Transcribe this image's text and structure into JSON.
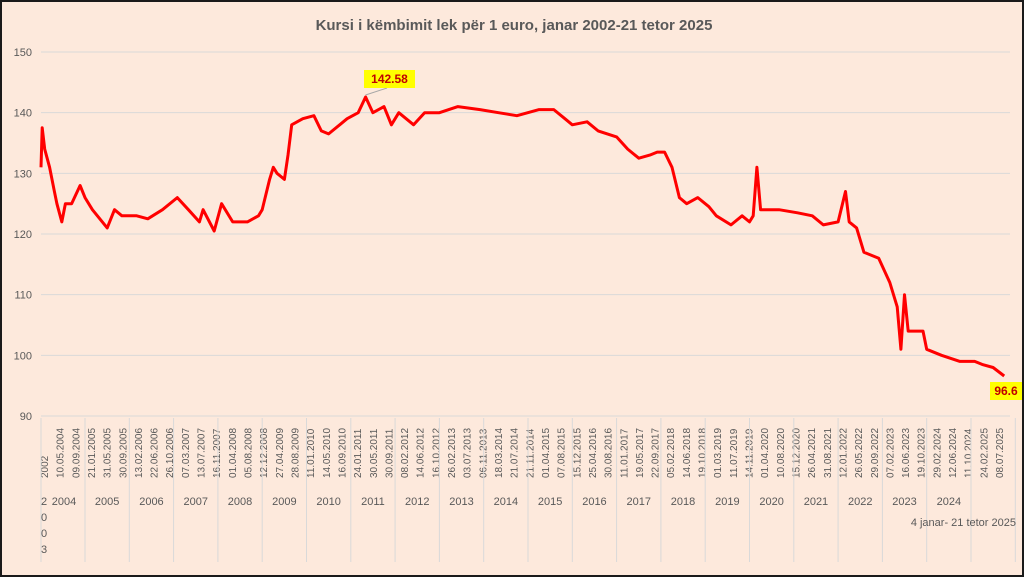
{
  "chart_data": {
    "type": "line",
    "title": "Kursi i këmbimit lek për 1 euro, janar 2002-21 tetor 2025",
    "xlabel": "",
    "ylabel": "",
    "ylim": [
      90,
      150
    ],
    "yticks": [
      90,
      100,
      110,
      120,
      130,
      140,
      150
    ],
    "grid": true,
    "line_color": "#ff0000",
    "x_tick_labels": [
      "2002",
      "10.05.2004",
      "09.09.2004",
      "21.01.2005",
      "31.05.2005",
      "30.09.2005",
      "13.02.2006",
      "22.06.2006",
      "26.10.2006",
      "07.03.2007",
      "13.07.2007",
      "16.11.2007",
      "01.04.2008",
      "05.08.2008",
      "12.12.2008",
      "27.04.2009",
      "28.08.2009",
      "11.01.2010",
      "14.05.2010",
      "16.09.2010",
      "24.01.2011",
      "30.05.2011",
      "30.09.2011",
      "08.02.2012",
      "14.06.2012",
      "16.10.2012",
      "26.02.2013",
      "03.07.2013",
      "06.11.2013",
      "18.03.2014",
      "21.07.2014",
      "21.11.2014",
      "01.04.2015",
      "07.08.2015",
      "15.12.2015",
      "25.04.2016",
      "30.08.2016",
      "11.01.2017",
      "19.05.2017",
      "22.09.2017",
      "05.02.2018",
      "14.06.2018",
      "19.10.2018",
      "01.03.2019",
      "11.07.2019",
      "14.11.2019",
      "01.04.2020",
      "10.08.2020",
      "15.12.2020",
      "26.04.2021",
      "31.08.2021",
      "12.01.2022",
      "26.05.2022",
      "29.09.2022",
      "07.02.2023",
      "16.06.2023",
      "19.10.2023",
      "29.02.2024",
      "12.06.2024",
      "11.10.2024",
      "24.02.2025",
      "08.07.2025"
    ],
    "year_labels": [
      "2004",
      "2005",
      "2006",
      "2007",
      "2008",
      "2009",
      "2010",
      "2011",
      "2012",
      "2013",
      "2014",
      "2015",
      "2016",
      "2017",
      "2018",
      "2019",
      "2020",
      "2021",
      "2022",
      "2023",
      "2024"
    ],
    "first_year_label": "2003",
    "last_period_label": "4 janar- 21 tetor 2025",
    "annotations": [
      {
        "label": "142.58",
        "x": "2011-05",
        "y": 142.58,
        "bg": "#ffff00",
        "color": "#c00000"
      },
      {
        "label": "96.6",
        "x": "2025-10",
        "y": 96.6,
        "bg": "#ffff00",
        "color": "#c00000"
      }
    ],
    "series": [
      {
        "x": [
          "2002-01",
          "2002-02",
          "2002-04",
          "2002-08",
          "2002-12",
          "2003-02",
          "2003-06",
          "2003-09",
          "2004-02",
          "2004-09",
          "2005-01",
          "2005-03",
          "2005-07",
          "2005-09",
          "2005-11",
          "2006-03",
          "2006-06",
          "2006-10",
          "2007-02",
          "2007-05",
          "2007-08",
          "2007-09",
          "2007-12",
          "2008-02",
          "2008-05",
          "2008-09",
          "2008-12",
          "2009-01",
          "2009-03",
          "2009-04",
          "2009-05",
          "2009-07",
          "2009-08",
          "2009-09",
          "2009-12",
          "2010-03",
          "2010-05",
          "2010-07",
          "2010-10",
          "2010-12",
          "2011-03",
          "2011-05",
          "2011-07",
          "2011-10",
          "2011-12",
          "2012-02",
          "2012-06",
          "2012-09",
          "2013-01",
          "2013-06",
          "2013-12",
          "2014-05",
          "2014-10",
          "2015-04",
          "2015-08",
          "2015-11",
          "2016-01",
          "2016-05",
          "2016-08",
          "2017-01",
          "2017-04",
          "2017-07",
          "2017-10",
          "2017-12",
          "2018-02",
          "2018-04",
          "2018-06",
          "2018-08",
          "2018-11",
          "2019-02",
          "2019-04",
          "2019-08",
          "2019-11",
          "2020-01",
          "2020-02",
          "2020-03",
          "2020-04",
          "2020-09",
          "2021-02",
          "2021-06",
          "2021-09",
          "2022-01",
          "2022-03",
          "2022-04",
          "2022-06",
          "2022-08",
          "2022-12",
          "2023-03",
          "2023-05",
          "2023-06",
          "2023-07",
          "2023-08",
          "2023-09",
          "2023-12",
          "2024-01",
          "2024-05",
          "2024-10",
          "2025-02",
          "2025-04",
          "2025-07",
          "2025-10"
        ],
        "values": [
          131,
          137.5,
          134,
          131,
          127,
          125,
          122,
          125,
          125,
          128,
          126,
          124,
          121,
          124,
          123,
          123,
          122.5,
          124,
          126,
          124,
          122,
          124,
          120.5,
          125,
          122,
          122,
          123,
          124,
          129,
          131,
          130,
          129,
          133,
          138,
          139,
          139.5,
          137,
          136.5,
          138,
          139,
          140,
          142.58,
          140,
          141,
          138,
          140,
          138,
          140,
          140,
          141,
          140.5,
          140,
          139.5,
          140.5,
          140.5,
          139,
          138,
          138.5,
          137,
          136,
          134,
          132.5,
          133,
          133.5,
          133.5,
          131,
          126,
          125,
          126,
          124.5,
          123,
          121.5,
          123,
          122,
          123,
          131,
          124,
          124,
          123.5,
          123,
          121.5,
          122,
          127,
          122,
          121,
          117,
          116,
          112,
          108,
          101,
          110,
          104,
          104,
          104,
          101,
          100,
          99,
          99,
          98.5,
          98,
          96.6
        ]
      }
    ]
  }
}
